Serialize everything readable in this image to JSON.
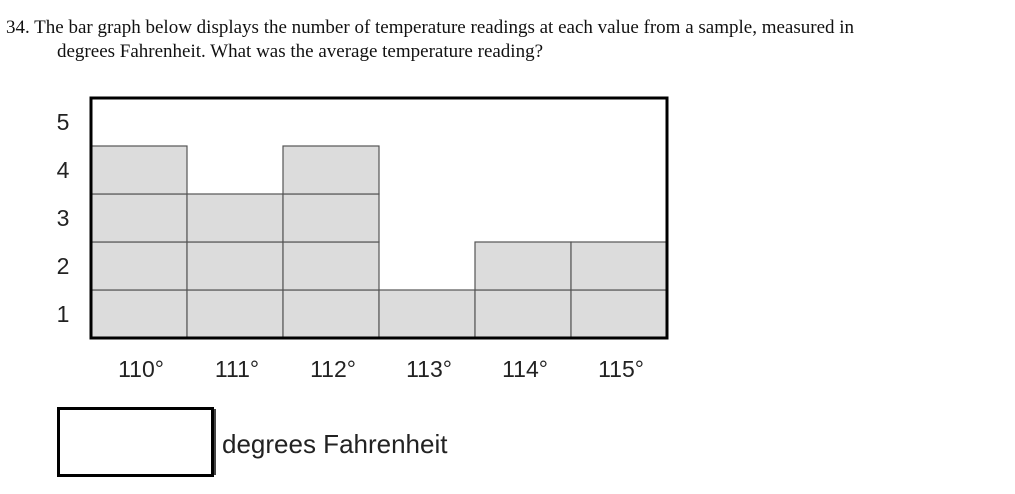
{
  "question": {
    "number": "34.",
    "text_line1": "The bar graph below displays the number of temperature readings at each value from a sample, measured in",
    "text_line2": "degrees Fahrenheit. What was the average temperature reading?"
  },
  "chart_data": {
    "type": "bar",
    "categories": [
      "110°",
      "111°",
      "112°",
      "113°",
      "114°",
      "115°"
    ],
    "values": [
      4,
      3,
      4,
      1,
      2,
      2
    ],
    "y_ticks": [
      1,
      2,
      3,
      4,
      5
    ],
    "ylim": [
      0,
      5
    ],
    "bar_style": "stacked unit blocks",
    "colors": {
      "bar_fill": "#dcdcdc",
      "bar_stroke": "#555555",
      "frame": "#000000"
    }
  },
  "answer": {
    "value": "",
    "unit_label": "degrees Fahrenheit"
  }
}
